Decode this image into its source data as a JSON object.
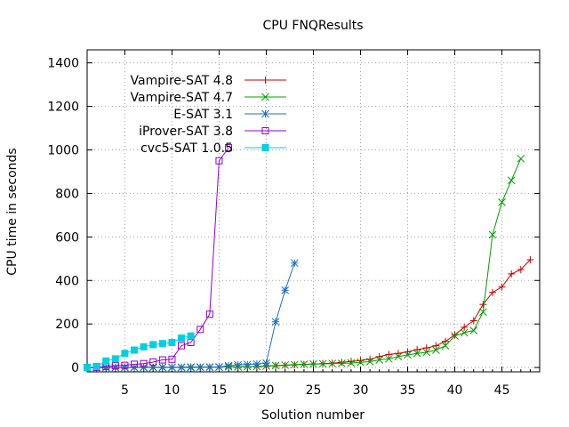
{
  "chart_data": {
    "type": "line",
    "title": "CPU FNQResults",
    "xlabel": "Solution number",
    "ylabel": "CPU time in seconds",
    "xlim": [
      1,
      49
    ],
    "ylim": [
      -20,
      1460
    ],
    "xticks": [
      5,
      10,
      15,
      20,
      25,
      30,
      35,
      40,
      45
    ],
    "yticks": [
      0,
      200,
      400,
      600,
      800,
      1000,
      1200,
      1400
    ],
    "grid": true,
    "legend_position": "top-left",
    "series": [
      {
        "name": "Vampire-SAT 4.8",
        "color": "#cc0000",
        "marker": "plus",
        "x": [
          1,
          2,
          3,
          4,
          5,
          6,
          7,
          8,
          9,
          10,
          11,
          12,
          13,
          14,
          15,
          16,
          17,
          18,
          19,
          20,
          21,
          22,
          23,
          24,
          25,
          26,
          27,
          28,
          29,
          30,
          31,
          32,
          33,
          34,
          35,
          36,
          37,
          38,
          39,
          40,
          41,
          42,
          43,
          44,
          45,
          46,
          47,
          48
        ],
        "values": [
          0,
          0,
          0,
          0,
          0,
          1,
          1,
          1,
          1,
          1,
          1,
          2,
          2,
          2,
          2,
          3,
          3,
          4,
          5,
          6,
          8,
          10,
          12,
          14,
          16,
          18,
          20,
          24,
          28,
          32,
          38,
          50,
          60,
          65,
          72,
          82,
          90,
          100,
          120,
          150,
          185,
          215,
          290,
          345,
          370,
          430,
          450,
          495
        ]
      },
      {
        "name": "Vampire-SAT 4.7",
        "color": "#00a000",
        "marker": "x",
        "x": [
          1,
          2,
          3,
          4,
          5,
          6,
          7,
          8,
          9,
          10,
          11,
          12,
          13,
          14,
          15,
          16,
          17,
          18,
          19,
          20,
          21,
          22,
          23,
          24,
          25,
          26,
          27,
          28,
          29,
          30,
          31,
          32,
          33,
          34,
          35,
          36,
          37,
          38,
          39,
          40,
          41,
          42,
          43,
          44,
          45,
          46,
          47
        ],
        "values": [
          0,
          0,
          0,
          0,
          0,
          0,
          1,
          1,
          1,
          1,
          1,
          2,
          2,
          2,
          2,
          3,
          3,
          4,
          5,
          7,
          9,
          11,
          13,
          15,
          16,
          17,
          18,
          19,
          21,
          24,
          27,
          35,
          40,
          50,
          58,
          65,
          70,
          80,
          100,
          145,
          160,
          170,
          255,
          610,
          760,
          860,
          960
        ]
      },
      {
        "name": "E-SAT 3.1",
        "color": "#1f6fc0",
        "marker": "star",
        "x": [
          1,
          2,
          3,
          4,
          5,
          6,
          7,
          8,
          9,
          10,
          11,
          12,
          13,
          14,
          15,
          16,
          17,
          18,
          19,
          20,
          21,
          22,
          23
        ],
        "values": [
          0,
          0,
          0,
          0,
          0,
          0,
          0,
          0,
          0,
          0,
          0,
          0,
          1,
          1,
          2,
          8,
          12,
          14,
          16,
          20,
          210,
          355,
          480
        ]
      },
      {
        "name": "iProver-SAT 3.8",
        "color": "#9400d3",
        "marker": "square",
        "x": [
          1,
          2,
          3,
          4,
          5,
          6,
          7,
          8,
          9,
          10,
          11,
          12,
          13,
          14,
          15,
          16
        ],
        "values": [
          0,
          1,
          5,
          8,
          10,
          15,
          18,
          25,
          35,
          38,
          100,
          115,
          175,
          245,
          950,
          1010
        ]
      },
      {
        "name": "cvc5-SAT 1.0.5",
        "color": "#00d0e0",
        "marker": "filled-square",
        "x": [
          1,
          2,
          3,
          4,
          5,
          6,
          7,
          8,
          9,
          10,
          11,
          12
        ],
        "values": [
          0,
          5,
          30,
          40,
          65,
          80,
          95,
          105,
          110,
          115,
          135,
          145
        ]
      }
    ]
  }
}
